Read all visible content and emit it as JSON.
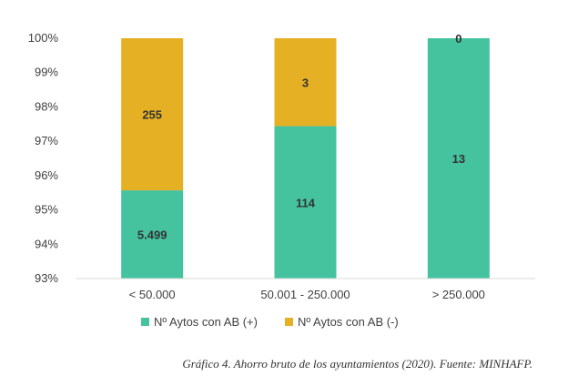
{
  "chart_data": {
    "type": "bar",
    "stacked": true,
    "categories": [
      "< 50.000",
      "50.001 - 250.000",
      "> 250.000"
    ],
    "series": [
      {
        "name": "Nº Aytos con AB (+)",
        "color": "#45C39E",
        "percent": [
          95.57,
          97.44,
          100
        ],
        "labels": [
          "5.499",
          "114",
          "13"
        ]
      },
      {
        "name": "Nº Aytos con AB (-)",
        "color": "#E5B024",
        "percent": [
          4.43,
          2.56,
          0
        ],
        "labels": [
          "255",
          "3",
          "0"
        ]
      }
    ],
    "ylim": [
      93,
      100
    ],
    "yticks": [
      "93%",
      "94%",
      "95%",
      "96%",
      "97%",
      "98%",
      "99%",
      "100%"
    ],
    "grid": false,
    "legend": "bottom"
  },
  "caption": "Gráfico 4. Ahorro bruto de los ayuntamientos (2020). Fuente: MINHAFP."
}
